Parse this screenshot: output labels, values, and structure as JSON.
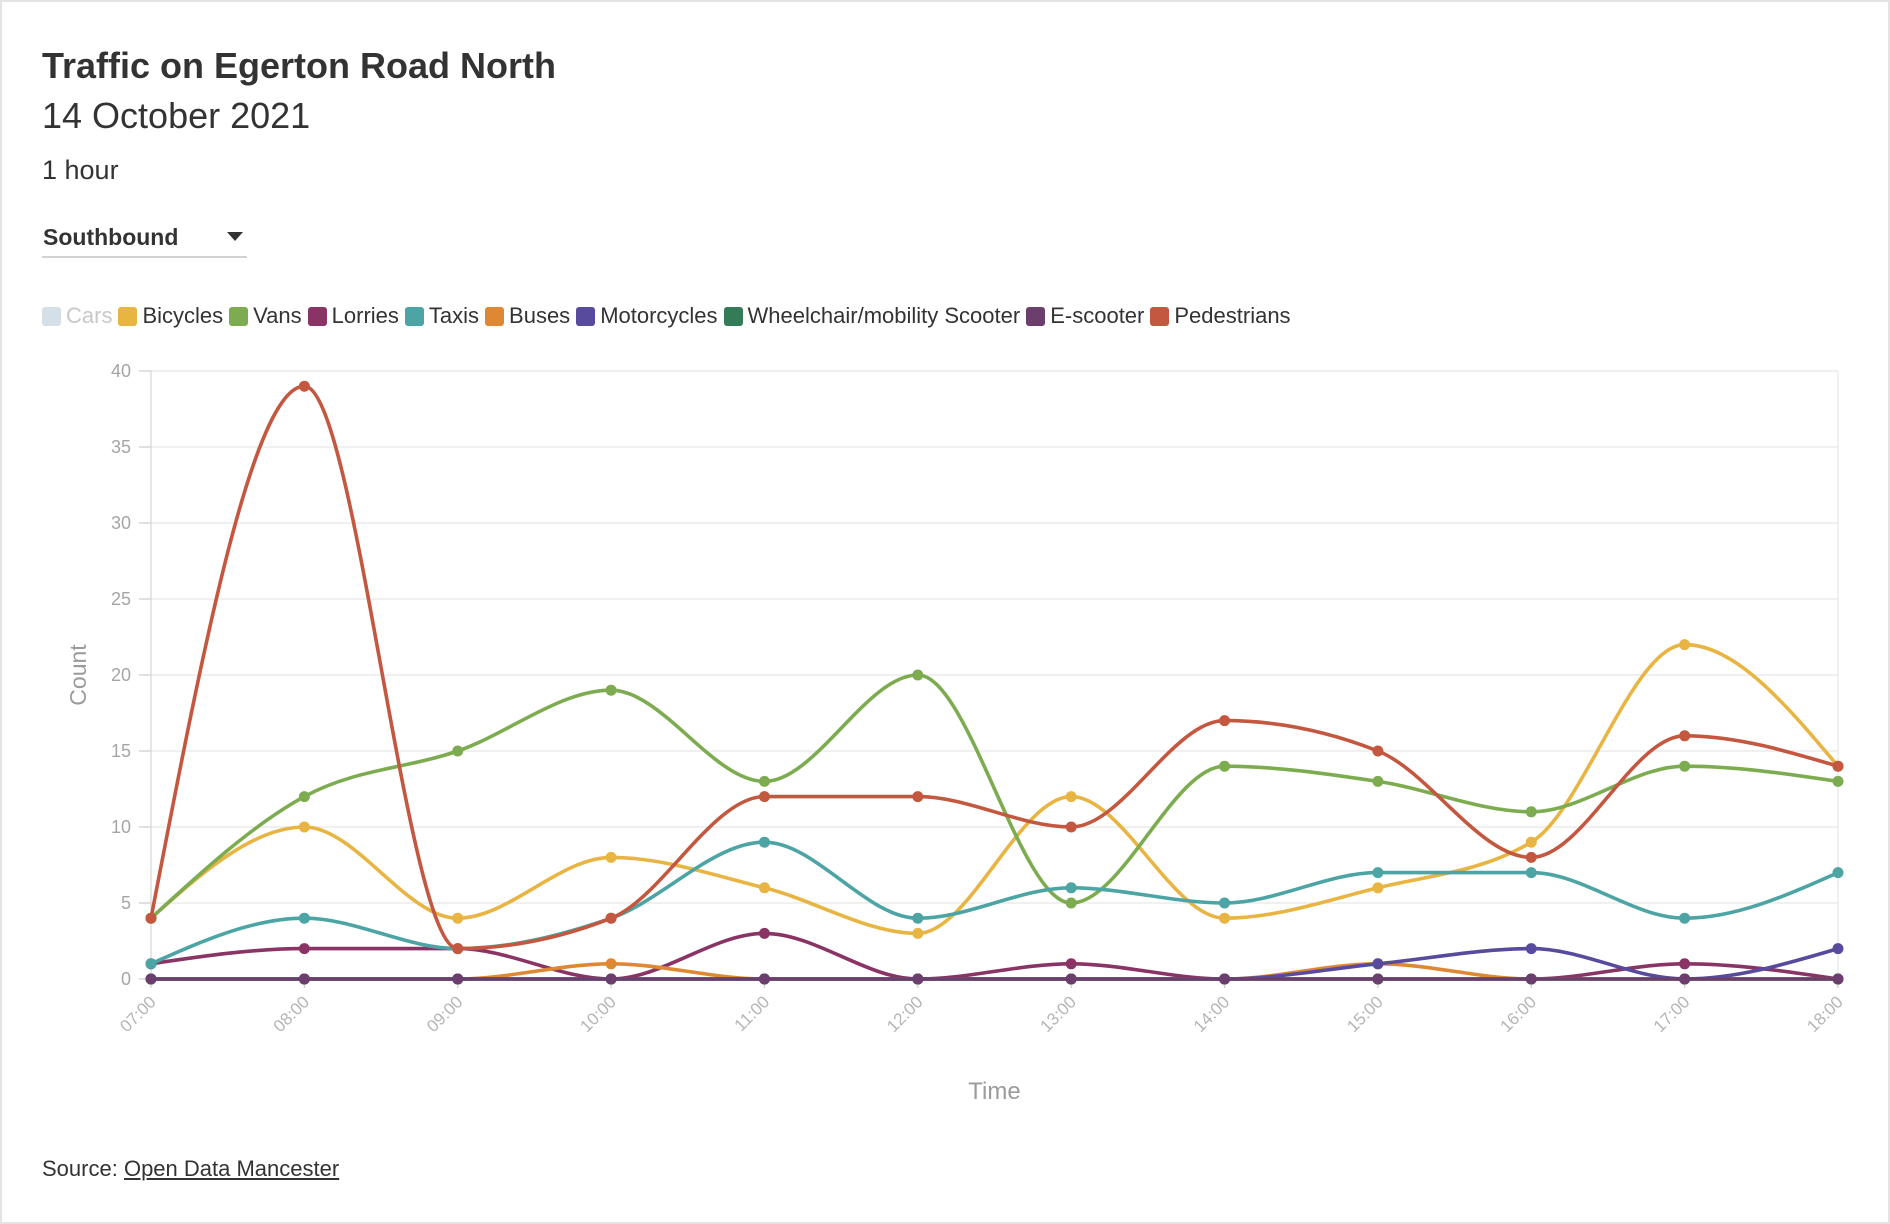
{
  "chart_data": {
    "type": "line",
    "title": "Traffic on Egerton Road North",
    "subtitle": "14 October 2021",
    "note": "1 hour",
    "xlabel": "Time",
    "ylabel": "Count",
    "x": [
      "07:00",
      "08:00",
      "09:00",
      "10:00",
      "11:00",
      "12:00",
      "13:00",
      "14:00",
      "15:00",
      "16:00",
      "17:00",
      "18:00"
    ],
    "ylim": [
      0,
      40
    ],
    "yticks": [
      0,
      5,
      10,
      15,
      20,
      25,
      30,
      35,
      40
    ],
    "grid": true,
    "curve": "smooth",
    "legend_position": "top-left",
    "series": [
      {
        "name": "Cars",
        "color": "#d5dfe8",
        "hidden": true
      },
      {
        "name": "Bicycles",
        "color": "#e8b442",
        "values": [
          4,
          10,
          4,
          8,
          6,
          3,
          12,
          4,
          6,
          9,
          22,
          14
        ]
      },
      {
        "name": "Vans",
        "color": "#7dac50",
        "values": [
          4,
          12,
          15,
          19,
          13,
          20,
          5,
          14,
          13,
          11,
          14,
          13
        ]
      },
      {
        "name": "Lorries",
        "color": "#8a3466",
        "values": [
          1,
          2,
          2,
          0,
          3,
          0,
          1,
          0,
          0,
          0,
          1,
          0
        ]
      },
      {
        "name": "Taxis",
        "color": "#4ca4a4",
        "values": [
          1,
          4,
          2,
          4,
          9,
          4,
          6,
          5,
          7,
          7,
          4,
          7
        ]
      },
      {
        "name": "Buses",
        "color": "#df8834",
        "values": [
          0,
          0,
          0,
          1,
          0,
          0,
          0,
          0,
          1,
          0,
          0,
          0
        ]
      },
      {
        "name": "Motorcycles",
        "color": "#584a9c",
        "values": [
          0,
          0,
          0,
          0,
          0,
          0,
          0,
          0,
          1,
          2,
          0,
          2
        ]
      },
      {
        "name": "Wheelchair/mobility Scooter",
        "color": "#347c58",
        "values": [
          0,
          0,
          0,
          0,
          0,
          0,
          0,
          0,
          0,
          0,
          0,
          0
        ]
      },
      {
        "name": "E-scooter",
        "color": "#6c3e6e",
        "values": [
          0,
          0,
          0,
          0,
          0,
          0,
          0,
          0,
          0,
          0,
          0,
          0
        ]
      },
      {
        "name": "Pedestrians",
        "color": "#c4573f",
        "values": [
          4,
          39,
          2,
          4,
          12,
          12,
          10,
          17,
          15,
          8,
          16,
          14
        ]
      }
    ]
  },
  "controls": {
    "direction_selected": "Southbound"
  },
  "footer": {
    "source_label": "Source:",
    "source_link": "Open Data Mancester"
  }
}
